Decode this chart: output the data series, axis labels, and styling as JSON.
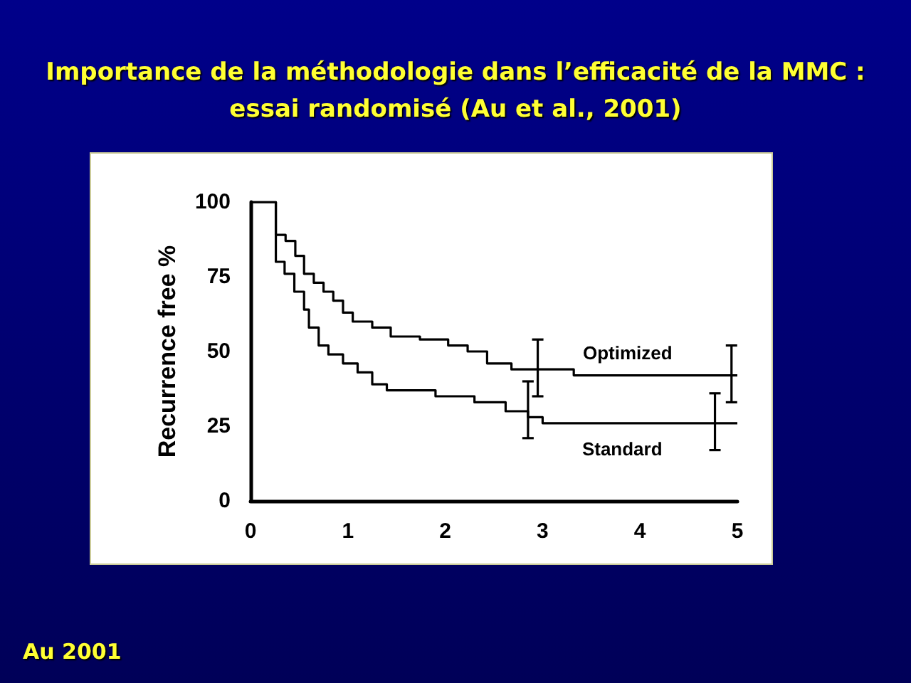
{
  "chart_data": {
    "type": "step",
    "title": "Importance de la méthodologie dans l’efficacité de la MMC : essai randomisé (Au et al., 2001)",
    "ylabel": "Recurrence free %",
    "annotations": [
      "Au 2001"
    ],
    "series": [
      {
        "name": "Optimized",
        "color": "#000000",
        "x": [
          0,
          0.13,
          0.26,
          0.36,
          0.46,
          0.55,
          0.65,
          0.75,
          0.85,
          0.95,
          1.05,
          1.25,
          1.44,
          1.74,
          2.03,
          2.23,
          2.43,
          2.68,
          2.95,
          3.32,
          4.94,
          5
        ],
        "values": [
          100,
          100,
          89,
          87,
          82,
          76,
          73,
          70,
          67,
          63,
          60,
          58,
          55,
          54,
          52,
          50,
          46,
          44,
          44,
          42,
          42,
          42
        ],
        "errors": [
          null,
          null,
          null,
          null,
          null,
          null,
          null,
          null,
          null,
          null,
          null,
          null,
          null,
          null,
          null,
          null,
          null,
          null,
          [
            35,
            54
          ],
          null,
          [
            33,
            52
          ],
          null
        ]
      },
      {
        "name": "Standard",
        "color": "#000000",
        "x": [
          0,
          0.13,
          0.26,
          0.35,
          0.45,
          0.55,
          0.6,
          0.7,
          0.8,
          0.95,
          1.1,
          1.25,
          1.4,
          1.9,
          2.3,
          2.62,
          2.85,
          3.0,
          4.77,
          5
        ],
        "values": [
          100,
          100,
          80,
          76,
          70,
          64,
          58,
          52,
          49,
          46,
          43,
          39,
          37,
          35,
          33,
          30,
          28,
          26,
          26,
          26
        ],
        "errors": [
          null,
          null,
          null,
          null,
          null,
          null,
          null,
          null,
          null,
          null,
          null,
          null,
          null,
          null,
          null,
          null,
          [
            21,
            40
          ],
          null,
          [
            17,
            36
          ],
          null
        ]
      }
    ],
    "xlim": [
      0,
      5
    ],
    "xticks": [
      0,
      1,
      2,
      3,
      4,
      5
    ],
    "ylim": [
      0,
      100
    ],
    "yticks": [
      0,
      25,
      50,
      75,
      100
    ],
    "grid": false,
    "legend": false,
    "marker": "none",
    "line_style": "solid"
  }
}
